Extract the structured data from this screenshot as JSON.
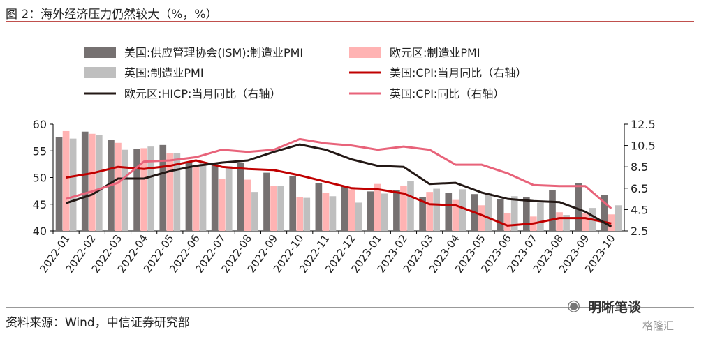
{
  "header": {
    "title": "图 2：海外经济压力仍然较大（%，%）"
  },
  "footer": {
    "source": "资料来源：Wind，中信证券研究部"
  },
  "watermark": {
    "primary": "明晰笔谈",
    "secondary": "格隆汇"
  },
  "chart_data": {
    "type": "bar",
    "title": "",
    "xlabel": "",
    "ylabel": "",
    "categories": [
      "2022-01",
      "2022-02",
      "2022-03",
      "2022-04",
      "2022-05",
      "2022-06",
      "2022-07",
      "2022-08",
      "2022-09",
      "2022-10",
      "2022-11",
      "2022-12",
      "2023-01",
      "2023-02",
      "2023-03",
      "2023-04",
      "2023-05",
      "2023-06",
      "2023-07",
      "2023-08",
      "2023-09",
      "2023-10"
    ],
    "ylim": [
      40,
      60
    ],
    "yticks": [
      40,
      45,
      50,
      55,
      60
    ],
    "y2lim": [
      2.5,
      12.5
    ],
    "y2ticks": [
      "2.5",
      "4.5",
      "6.5",
      "8.5",
      "10.5",
      "12.5"
    ],
    "legend_position": "top",
    "grid": false,
    "bar_series": [
      {
        "name": "美国:供应管理协会(ISM):制造业PMI",
        "color": "#767171",
        "values": [
          57.6,
          58.6,
          57.1,
          55.4,
          56.1,
          53.0,
          52.8,
          52.8,
          50.9,
          50.2,
          49.0,
          48.4,
          47.4,
          47.7,
          46.3,
          47.1,
          46.9,
          46.0,
          46.4,
          47.6,
          49.0,
          46.7
        ]
      },
      {
        "name": "欧元区:制造业PMI",
        "color": "#ffb3b3",
        "values": [
          58.7,
          58.2,
          56.5,
          55.5,
          54.6,
          52.1,
          49.8,
          49.6,
          48.4,
          46.4,
          47.1,
          47.8,
          48.8,
          48.5,
          47.3,
          45.8,
          44.8,
          43.4,
          42.7,
          43.5,
          43.4,
          43.1
        ]
      },
      {
        "name": "英国:制造业PMI",
        "color": "#bfbfbf",
        "values": [
          57.3,
          58.0,
          55.2,
          55.8,
          54.6,
          52.8,
          52.1,
          47.3,
          48.4,
          46.2,
          46.5,
          45.3,
          47.0,
          49.3,
          47.9,
          47.8,
          47.1,
          46.5,
          45.3,
          43.0,
          44.3,
          44.8
        ]
      }
    ],
    "line_series": [
      {
        "name": "美国:CPI:当月同比（右轴）",
        "color": "#c00000",
        "values": [
          7.5,
          7.9,
          8.5,
          8.3,
          8.6,
          9.1,
          8.5,
          8.3,
          8.2,
          7.7,
          7.1,
          6.5,
          6.4,
          6.0,
          5.0,
          4.9,
          4.0,
          3.0,
          3.2,
          3.7,
          3.7,
          3.2
        ]
      },
      {
        "name": "欧元区:HICP:当月同比（右轴）",
        "color": "#231815",
        "values": [
          5.1,
          5.9,
          7.4,
          7.4,
          8.1,
          8.6,
          8.9,
          9.1,
          9.9,
          10.6,
          10.1,
          9.2,
          8.6,
          8.5,
          6.9,
          7.0,
          6.1,
          5.5,
          5.3,
          5.2,
          4.3,
          2.9
        ]
      },
      {
        "name": "英国:CPI:同比（右轴）",
        "color": "#e8637a",
        "values": [
          5.5,
          6.2,
          7.0,
          9.0,
          9.1,
          9.4,
          10.1,
          9.9,
          10.1,
          11.1,
          10.7,
          10.5,
          10.1,
          10.4,
          10.1,
          8.7,
          8.7,
          7.9,
          6.8,
          6.7,
          6.7,
          4.6
        ]
      }
    ]
  }
}
